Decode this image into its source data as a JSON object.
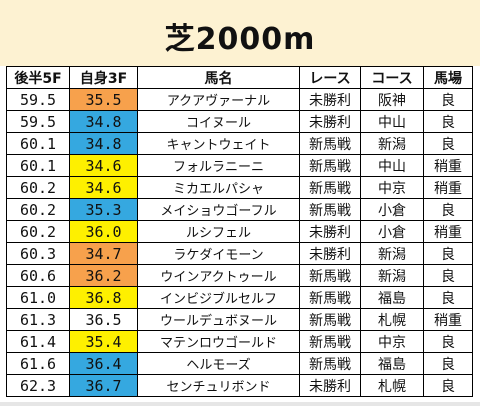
{
  "title": "芝2000m",
  "headers": [
    "後半5F",
    "自身3F",
    "馬名",
    "レース",
    "コース",
    "馬場"
  ],
  "colors": {
    "orange": "#f7a14c",
    "blue": "#35a8e0",
    "yellow": "#fef000",
    "header_bg": "#fdf2d2"
  },
  "rows": [
    {
      "late5f": "59.5",
      "own3f": "35.5",
      "own3f_color": "orange",
      "name": "アクアヴァーナル",
      "race": "未勝利",
      "course": "阪神",
      "track": "良"
    },
    {
      "late5f": "59.5",
      "own3f": "34.8",
      "own3f_color": "blue",
      "name": "コイヌール",
      "race": "未勝利",
      "course": "中山",
      "track": "良"
    },
    {
      "late5f": "60.1",
      "own3f": "34.8",
      "own3f_color": "blue",
      "name": "キャントウェイト",
      "race": "新馬戦",
      "course": "新潟",
      "track": "良"
    },
    {
      "late5f": "60.1",
      "own3f": "34.6",
      "own3f_color": "yellow",
      "name": "フォルラニーニ",
      "race": "新馬戦",
      "course": "中山",
      "track": "稍重"
    },
    {
      "late5f": "60.2",
      "own3f": "34.6",
      "own3f_color": "yellow",
      "name": "ミカエルパシャ",
      "race": "新馬戦",
      "course": "中京",
      "track": "稍重"
    },
    {
      "late5f": "60.2",
      "own3f": "35.3",
      "own3f_color": "blue",
      "name": "メイショウゴーフル",
      "race": "新馬戦",
      "course": "小倉",
      "track": "良"
    },
    {
      "late5f": "60.2",
      "own3f": "36.0",
      "own3f_color": "yellow",
      "name": "ルシフェル",
      "race": "未勝利",
      "course": "小倉",
      "track": "稍重"
    },
    {
      "late5f": "60.3",
      "own3f": "34.7",
      "own3f_color": "orange",
      "name": "ラケダイモーン",
      "race": "未勝利",
      "course": "新潟",
      "track": "良"
    },
    {
      "late5f": "60.6",
      "own3f": "36.2",
      "own3f_color": "orange",
      "name": "ウインアクトゥール",
      "race": "新馬戦",
      "course": "新潟",
      "track": "良"
    },
    {
      "late5f": "61.0",
      "own3f": "36.8",
      "own3f_color": "yellow",
      "name": "インビジブルセルフ",
      "race": "新馬戦",
      "course": "福島",
      "track": "良"
    },
    {
      "late5f": "61.3",
      "own3f": "36.5",
      "own3f_color": "none",
      "name": "ウールデュボヌール",
      "race": "新馬戦",
      "course": "札幌",
      "track": "稍重"
    },
    {
      "late5f": "61.4",
      "own3f": "35.4",
      "own3f_color": "yellow",
      "name": "マテンロウゴールド",
      "race": "新馬戦",
      "course": "中京",
      "track": "良"
    },
    {
      "late5f": "61.6",
      "own3f": "36.4",
      "own3f_color": "blue",
      "name": "ヘルモーズ",
      "race": "新馬戦",
      "course": "福島",
      "track": "良"
    },
    {
      "late5f": "62.3",
      "own3f": "36.7",
      "own3f_color": "blue",
      "name": "センチュリボンド",
      "race": "未勝利",
      "course": "札幌",
      "track": "良"
    }
  ]
}
